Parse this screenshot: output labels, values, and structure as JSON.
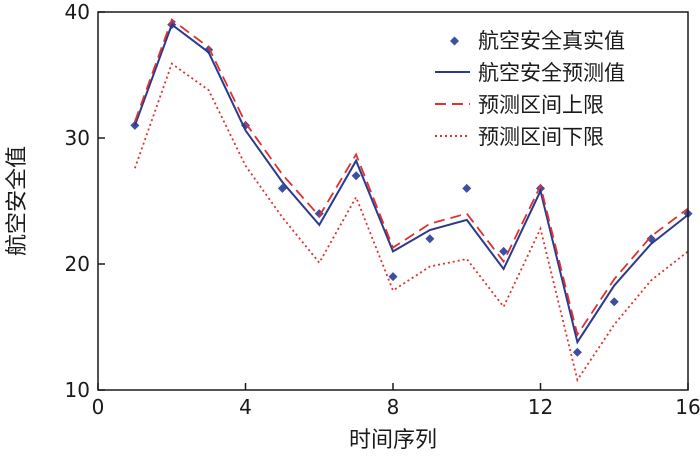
{
  "chart_data": {
    "type": "line",
    "title": "",
    "xlabel": "时间序列",
    "ylabel": "航空安全值",
    "xlim": [
      0,
      16
    ],
    "ylim": [
      10,
      40
    ],
    "xticks": [
      0,
      4,
      8,
      12,
      16
    ],
    "yticks": [
      10,
      20,
      30,
      40
    ],
    "grid": false,
    "legend_position": "top-right",
    "x": [
      1,
      2,
      3,
      4,
      5,
      6,
      7,
      8,
      9,
      10,
      11,
      12,
      13,
      14,
      15,
      16
    ],
    "series": [
      {
        "name": "航空安全真实值",
        "style": "markers",
        "color": "#3d4fa0",
        "values": [
          31,
          39,
          37,
          31,
          26,
          24,
          27,
          19,
          22,
          26,
          21,
          26,
          13,
          17,
          22,
          24
        ]
      },
      {
        "name": "航空安全预测值",
        "style": "solid",
        "color": "#2b3a8c",
        "values": [
          31,
          39,
          36.8,
          30.6,
          26.5,
          23.1,
          28.2,
          21.0,
          22.7,
          23.5,
          19.6,
          25.8,
          13.8,
          18.3,
          21.6,
          23.9
        ]
      },
      {
        "name": "预测区间上限",
        "style": "dashed",
        "color": "#e03030",
        "values": [
          31.3,
          39.4,
          37.2,
          31.2,
          27.1,
          23.8,
          28.7,
          21.3,
          23.2,
          24.0,
          20.2,
          26.2,
          14.4,
          18.8,
          22.2,
          24.4
        ]
      },
      {
        "name": "预测区间下限",
        "style": "dotted",
        "color": "#e03030",
        "values": [
          27.6,
          35.9,
          33.8,
          27.8,
          23.7,
          20.1,
          25.3,
          17.9,
          19.8,
          20.4,
          16.6,
          22.8,
          10.8,
          15.2,
          18.7,
          21.0
        ]
      }
    ]
  }
}
